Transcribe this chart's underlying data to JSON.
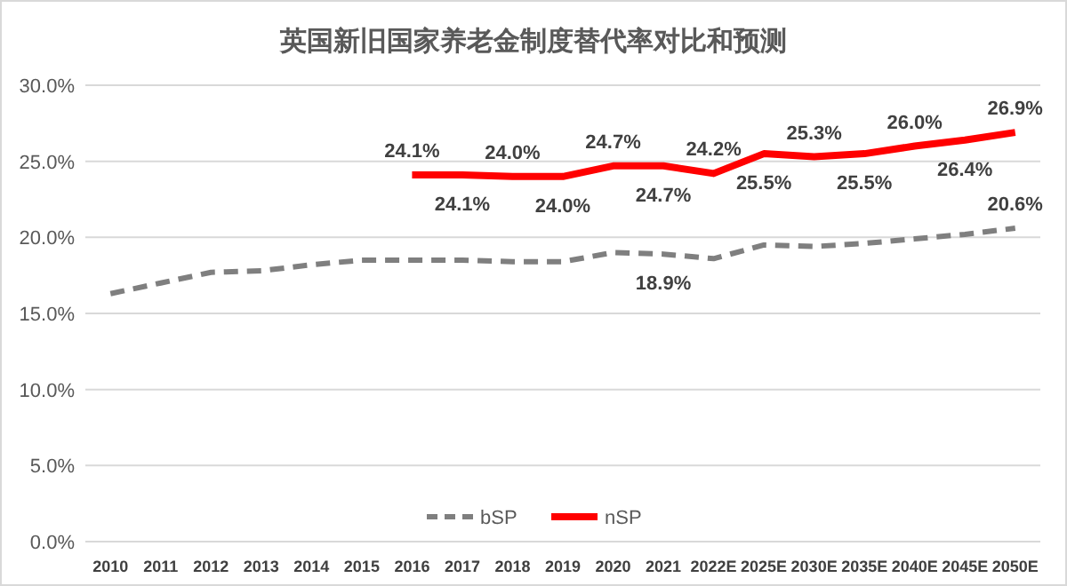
{
  "chart_data": {
    "type": "line",
    "title": "英国新旧国家养老金制度替代率对比和预测",
    "categories": [
      "2010",
      "2011",
      "2012",
      "2013",
      "2014",
      "2015",
      "2016",
      "2017",
      "2018",
      "2019",
      "2020",
      "2021",
      "2022E",
      "2025E",
      "2030E",
      "2035E",
      "2040E",
      "2045E",
      "2050E"
    ],
    "series": [
      {
        "name": "bSP",
        "color": "#7f7f7f",
        "line_style": "dashed",
        "values": [
          16.3,
          17.0,
          17.7,
          17.8,
          18.2,
          18.5,
          18.5,
          18.5,
          18.4,
          18.4,
          19.0,
          18.9,
          18.6,
          19.5,
          19.4,
          19.6,
          19.9,
          20.2,
          20.6
        ],
        "value_labels": [
          null,
          null,
          null,
          null,
          null,
          null,
          null,
          null,
          null,
          null,
          null,
          "18.9%",
          null,
          null,
          null,
          null,
          null,
          null,
          "20.6%"
        ]
      },
      {
        "name": "nSP",
        "color": "#ff0000",
        "line_style": "solid",
        "values": [
          null,
          null,
          null,
          null,
          null,
          null,
          24.1,
          24.1,
          24.0,
          24.0,
          24.7,
          24.7,
          24.2,
          25.5,
          25.3,
          25.5,
          26.0,
          26.4,
          26.9
        ],
        "value_labels": [
          null,
          null,
          null,
          null,
          null,
          null,
          "24.1%",
          "24.1%",
          "24.0%",
          "24.0%",
          "24.7%",
          "24.7%",
          "24.2%",
          "25.5%",
          "25.3%",
          "25.5%",
          "26.0%",
          "26.4%",
          "26.9%"
        ]
      }
    ],
    "ylim": [
      0,
      30
    ],
    "yticks": [
      {
        "value": 0,
        "label": "0.0%"
      },
      {
        "value": 5,
        "label": "5.0%"
      },
      {
        "value": 10,
        "label": "10.0%"
      },
      {
        "value": 15,
        "label": "15.0%"
      },
      {
        "value": 20,
        "label": "20.0%"
      },
      {
        "value": 25,
        "label": "25.0%"
      },
      {
        "value": 30,
        "label": "30.0%"
      }
    ],
    "grid": "y",
    "legend": "bottom",
    "marker": "none"
  }
}
